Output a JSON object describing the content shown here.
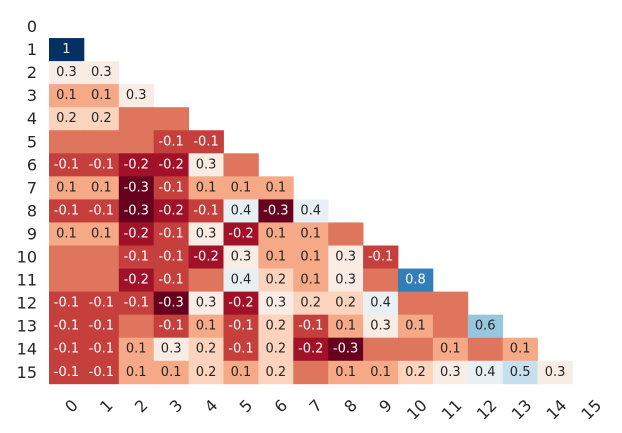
{
  "chart_data": {
    "type": "heatmap",
    "title": "",
    "xlabel": "",
    "ylabel": "",
    "rows": [
      "0",
      "1",
      "2",
      "3",
      "4",
      "5",
      "6",
      "7",
      "8",
      "9",
      "10",
      "11",
      "12",
      "13",
      "14",
      "15"
    ],
    "columns": [
      "0",
      "1",
      "2",
      "3",
      "4",
      "5",
      "6",
      "7",
      "8",
      "9",
      "10",
      "11",
      "12",
      "13",
      "14",
      "15"
    ],
    "color_scale": {
      "min": -0.3,
      "max": 1,
      "stops": [
        "#67001f",
        "#b2182b",
        "#d6604d",
        "#f4a582",
        "#fddbc7",
        "#f7f7f7",
        "#d1e5f0",
        "#92c5de",
        "#4393c3",
        "#2166ac",
        "#053061"
      ]
    },
    "values": [
      [],
      [
        1
      ],
      [
        0.3,
        0.3
      ],
      [
        0.1,
        0.1,
        0.3
      ],
      [
        0.2,
        0.2,
        0,
        0
      ],
      [
        0,
        0,
        0,
        -0.1,
        -0.1
      ],
      [
        -0.1,
        -0.1,
        -0.2,
        -0.2,
        0.3,
        0
      ],
      [
        0.1,
        0.1,
        -0.3,
        -0.1,
        0.1,
        0.1,
        0.1
      ],
      [
        -0.1,
        -0.1,
        -0.3,
        -0.2,
        -0.1,
        0.4,
        -0.3,
        0.4
      ],
      [
        0.1,
        0.1,
        -0.2,
        -0.1,
        0.3,
        -0.2,
        0.1,
        0.1,
        0
      ],
      [
        0,
        0,
        -0.1,
        -0.1,
        -0.2,
        0.3,
        0.1,
        0.1,
        0.3,
        -0.1
      ],
      [
        0,
        0,
        -0.2,
        -0.1,
        0,
        0.4,
        0.2,
        0.1,
        0.3,
        0,
        0.8
      ],
      [
        -0.1,
        -0.1,
        -0.1,
        -0.3,
        0.3,
        -0.2,
        0.3,
        0.2,
        0.2,
        0.4,
        0,
        0
      ],
      [
        -0.1,
        -0.1,
        0,
        -0.1,
        0.1,
        -0.1,
        0.2,
        -0.1,
        0.1,
        0.3,
        0.1,
        0,
        0.6
      ],
      [
        -0.1,
        -0.1,
        0.1,
        0.3,
        0.2,
        -0.1,
        0.2,
        -0.2,
        -0.3,
        0,
        0,
        0.1,
        0,
        0.1
      ],
      [
        -0.1,
        -0.1,
        0.1,
        0.1,
        0.2,
        0.1,
        0.2,
        0,
        0.1,
        0.1,
        0.2,
        0.3,
        0.4,
        0.5,
        0.3
      ]
    ],
    "labels": [
      [],
      [
        "1"
      ],
      [
        "0.3",
        "0.3"
      ],
      [
        "0.1",
        "0.1",
        "0.3"
      ],
      [
        "0.2",
        "0.2",
        "",
        ""
      ],
      [
        "",
        "",
        "",
        "-0.1",
        "-0.1"
      ],
      [
        "-0.1",
        "-0.1",
        "-0.2",
        "-0.2",
        "0.3",
        ""
      ],
      [
        "0.1",
        "0.1",
        "-0.3",
        "-0.1",
        "0.1",
        "0.1",
        "0.1"
      ],
      [
        "-0.1",
        "-0.1",
        "-0.3",
        "-0.2",
        "-0.1",
        "0.4",
        "-0.3",
        "0.4"
      ],
      [
        "0.1",
        "0.1",
        "-0.2",
        "-0.1",
        "0.3",
        "-0.2",
        "0.1",
        "0.1",
        ""
      ],
      [
        "",
        "",
        "-0.1",
        "-0.1",
        "-0.2",
        "0.3",
        "0.1",
        "0.1",
        "0.3",
        "-0.1"
      ],
      [
        "",
        "",
        "-0.2",
        "-0.1",
        "",
        "0.4",
        "0.2",
        "0.1",
        "0.3",
        "",
        "0.8"
      ],
      [
        "-0.1",
        "-0.1",
        "-0.1",
        "-0.3",
        "0.3",
        "-0.2",
        "0.3",
        "0.2",
        "0.2",
        "0.4",
        "",
        ""
      ],
      [
        "-0.1",
        "-0.1",
        "",
        "-0.1",
        "0.1",
        "-0.1",
        "0.2",
        "-0.1",
        "0.1",
        "0.3",
        "0.1",
        "",
        "0.6"
      ],
      [
        "-0.1",
        "-0.1",
        "0.1",
        "0.3",
        "0.2",
        "-0.1",
        "0.2",
        "-0.2",
        "-0.3",
        "",
        "",
        "0.1",
        "",
        "0.1"
      ],
      [
        "-0.1",
        "-0.1",
        "0.1",
        "0.1",
        "0.2",
        "0.1",
        "0.2",
        "",
        "0.1",
        "0.1",
        "0.2",
        "0.3",
        "0.4",
        "0.5",
        "0.3"
      ]
    ],
    "grid": false,
    "legend": "none"
  }
}
